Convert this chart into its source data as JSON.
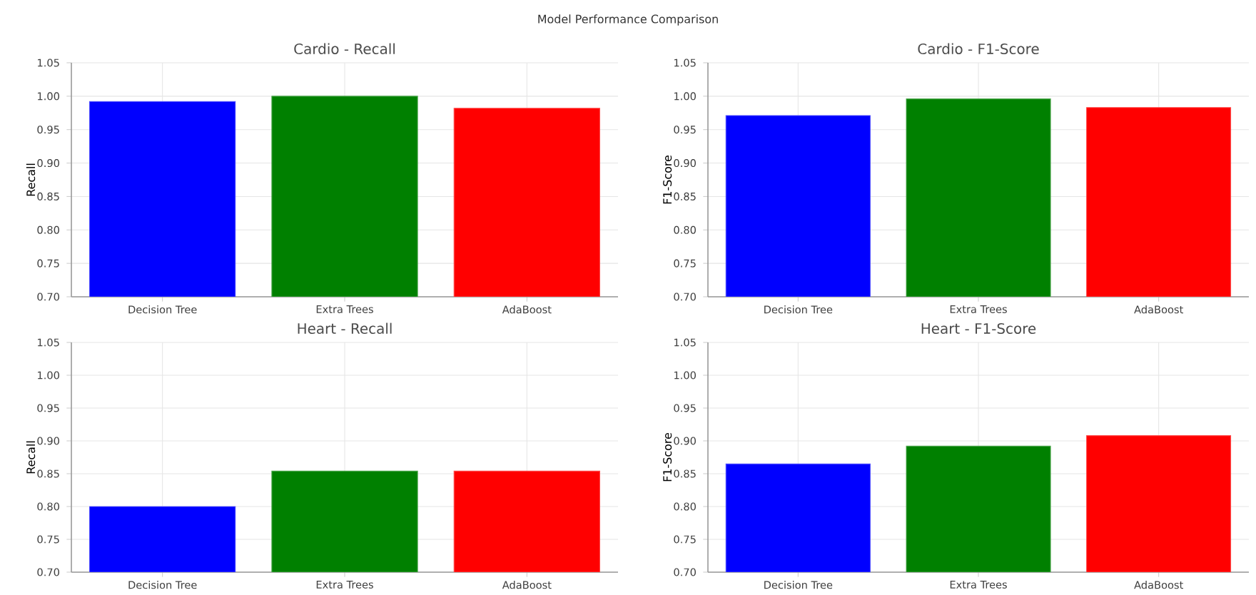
{
  "chart_data": [
    {
      "type": "bar",
      "title": "Cardio - Recall",
      "ylabel": "Recall",
      "annotations": [
        "Model Performance Comparison"
      ],
      "categories": [
        "Decision Tree",
        "Extra Trees",
        "AdaBoost"
      ],
      "values": [
        0.992,
        1.0,
        0.982
      ],
      "colors": [
        "#0000ff",
        "#008000",
        "#ff0000"
      ],
      "ylim": [
        0.7,
        1.05
      ],
      "yticks": [
        {
          "value": 0.7,
          "label": "0.70"
        },
        {
          "value": 0.75,
          "label": "0.75"
        },
        {
          "value": 0.8,
          "label": "0.80"
        },
        {
          "value": 0.85,
          "label": "0.85"
        },
        {
          "value": 0.9,
          "label": "0.90"
        },
        {
          "value": 0.95,
          "label": "0.95"
        },
        {
          "value": 1.0,
          "label": "1.00"
        },
        {
          "value": 1.05,
          "label": "1.05"
        }
      ],
      "grid": true
    },
    {
      "type": "bar",
      "title": "Cardio - F1-Score",
      "ylabel": "F1-Score",
      "categories": [
        "Decision Tree",
        "Extra Trees",
        "AdaBoost"
      ],
      "values": [
        0.971,
        0.996,
        0.983
      ],
      "colors": [
        "#0000ff",
        "#008000",
        "#ff0000"
      ],
      "ylim": [
        0.7,
        1.05
      ],
      "yticks": [
        {
          "value": 0.7,
          "label": "0.70"
        },
        {
          "value": 0.75,
          "label": "0.75"
        },
        {
          "value": 0.8,
          "label": "0.80"
        },
        {
          "value": 0.85,
          "label": "0.85"
        },
        {
          "value": 0.9,
          "label": "0.90"
        },
        {
          "value": 0.95,
          "label": "0.95"
        },
        {
          "value": 1.0,
          "label": "1.00"
        },
        {
          "value": 1.05,
          "label": "1.05"
        }
      ],
      "grid": true
    },
    {
      "type": "bar",
      "title": "Heart - Recall",
      "ylabel": "Recall",
      "categories": [
        "Decision Tree",
        "Extra Trees",
        "AdaBoost"
      ],
      "values": [
        0.8,
        0.854,
        0.854
      ],
      "colors": [
        "#0000ff",
        "#008000",
        "#ff0000"
      ],
      "ylim": [
        0.7,
        1.05
      ],
      "yticks": [
        {
          "value": 0.7,
          "label": "0.70"
        },
        {
          "value": 0.75,
          "label": "0.75"
        },
        {
          "value": 0.8,
          "label": "0.80"
        },
        {
          "value": 0.85,
          "label": "0.85"
        },
        {
          "value": 0.9,
          "label": "0.90"
        },
        {
          "value": 0.95,
          "label": "0.95"
        },
        {
          "value": 1.0,
          "label": "1.00"
        },
        {
          "value": 1.05,
          "label": "1.05"
        }
      ],
      "grid": true
    },
    {
      "type": "bar",
      "title": "Heart - F1-Score",
      "ylabel": "F1-Score",
      "categories": [
        "Decision Tree",
        "Extra Trees",
        "AdaBoost"
      ],
      "values": [
        0.865,
        0.892,
        0.908
      ],
      "colors": [
        "#0000ff",
        "#008000",
        "#ff0000"
      ],
      "ylim": [
        0.7,
        1.05
      ],
      "yticks": [
        {
          "value": 0.7,
          "label": "0.70"
        },
        {
          "value": 0.75,
          "label": "0.75"
        },
        {
          "value": 0.8,
          "label": "0.80"
        },
        {
          "value": 0.85,
          "label": "0.85"
        },
        {
          "value": 0.9,
          "label": "0.90"
        },
        {
          "value": 0.95,
          "label": "0.95"
        },
        {
          "value": 1.0,
          "label": "1.00"
        },
        {
          "value": 1.05,
          "label": "1.05"
        }
      ],
      "grid": true
    }
  ]
}
